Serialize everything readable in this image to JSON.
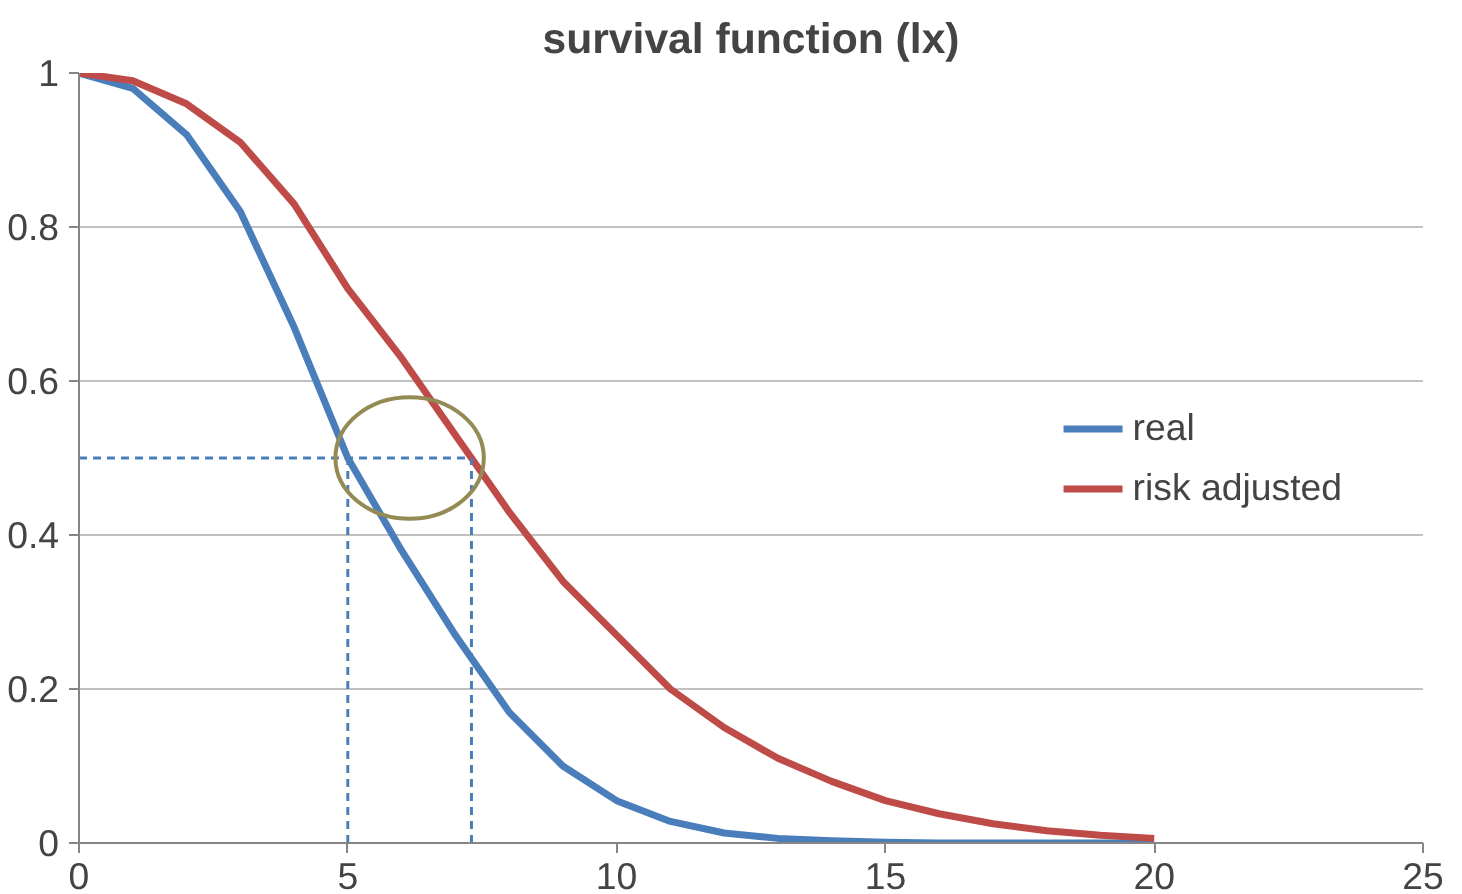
{
  "chart_data": {
    "type": "line",
    "title": "survival function (lx)",
    "xlim": [
      0,
      25
    ],
    "xticks": [
      0,
      5,
      10,
      15,
      20,
      25
    ],
    "ylim": [
      0,
      1
    ],
    "yticks": [
      0,
      0.2,
      0.4,
      0.6,
      0.8,
      1
    ],
    "grid": "y",
    "legend": "right",
    "line_style": "solid",
    "marker": "none",
    "series": [
      {
        "name": "real",
        "color": "#4a7ebb",
        "x": [
          0,
          1,
          2,
          3,
          4,
          5,
          6,
          7,
          7.3,
          8,
          9,
          10,
          11,
          12,
          13,
          14,
          15,
          16,
          17,
          18,
          19,
          20
        ],
        "values": [
          1,
          0.98,
          0.92,
          0.82,
          0.67,
          0.5,
          0.38,
          0.27,
          0.24,
          0.17,
          0.1,
          0.055,
          0.028,
          0.013,
          0.006,
          0.003,
          0.001,
          0,
          0,
          0,
          0,
          0
        ]
      },
      {
        "name": "risk adjusted",
        "color": "#be4b48",
        "x": [
          0,
          1,
          2,
          3,
          4,
          5,
          6,
          7,
          7.3,
          8,
          9,
          10,
          11,
          12,
          13,
          14,
          15,
          16,
          17,
          18,
          19,
          20
        ],
        "values": [
          1,
          0.99,
          0.96,
          0.91,
          0.83,
          0.72,
          0.63,
          0.53,
          0.5,
          0.43,
          0.34,
          0.27,
          0.2,
          0.15,
          0.11,
          0.08,
          0.055,
          0.038,
          0.025,
          0.016,
          0.01,
          0.006
        ]
      },
      {
        "color": "#4a7ebb",
        "line_style": "dashed",
        "x": [
          0,
          7.3
        ],
        "values": [
          0.5,
          0.5
        ]
      },
      {
        "color": "#4a7ebb",
        "line_style": "dashed",
        "x": [
          5,
          5
        ],
        "values": [
          0,
          0.5
        ]
      },
      {
        "color": "#4a7ebb",
        "line_style": "dashed",
        "x": [
          7.3,
          7.3
        ],
        "values": [
          0,
          0.5
        ]
      }
    ]
  }
}
